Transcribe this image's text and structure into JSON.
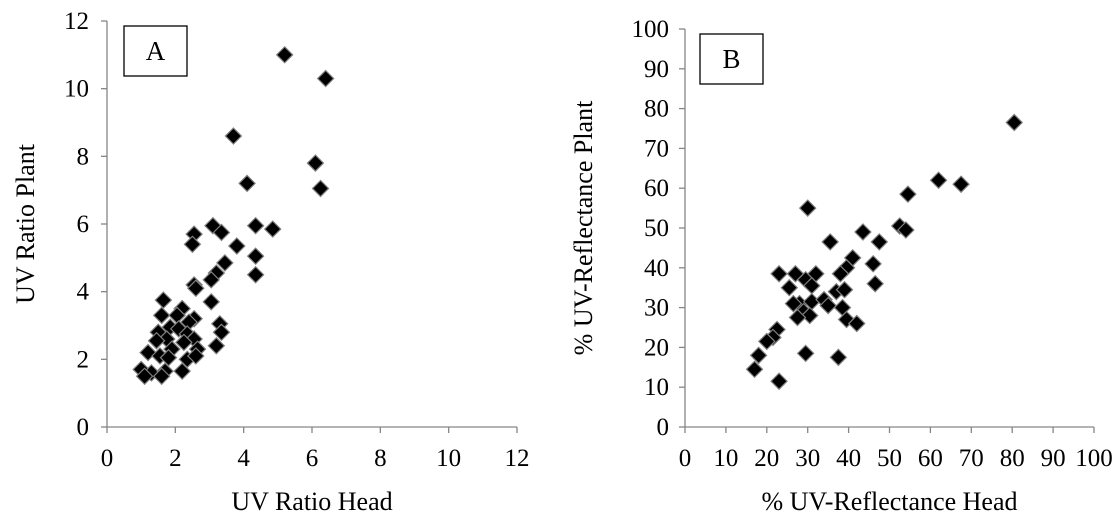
{
  "chart_data": [
    {
      "type": "scatter",
      "panel_label": "A",
      "xlabel": "UV Ratio Head",
      "ylabel": "UV Ratio Plant",
      "xlim": [
        0,
        12
      ],
      "ylim": [
        0,
        12
      ],
      "xticks": [
        "0",
        "2",
        "4",
        "6",
        "8",
        "10",
        "12"
      ],
      "yticks": [
        "0",
        "2",
        "4",
        "6",
        "8",
        "10",
        "12"
      ],
      "grid": false,
      "marker": "diamond",
      "points": [
        [
          5.2,
          11.0
        ],
        [
          6.4,
          10.3
        ],
        [
          3.7,
          8.6
        ],
        [
          6.1,
          7.8
        ],
        [
          6.25,
          7.05
        ],
        [
          4.1,
          7.2
        ],
        [
          3.1,
          5.95
        ],
        [
          4.35,
          5.95
        ],
        [
          4.85,
          5.85
        ],
        [
          3.35,
          5.75
        ],
        [
          2.55,
          5.7
        ],
        [
          2.5,
          5.4
        ],
        [
          3.8,
          5.35
        ],
        [
          4.35,
          5.05
        ],
        [
          3.45,
          4.85
        ],
        [
          3.2,
          4.55
        ],
        [
          4.35,
          4.5
        ],
        [
          3.05,
          4.35
        ],
        [
          2.55,
          4.2
        ],
        [
          2.6,
          4.1
        ],
        [
          1.65,
          3.75
        ],
        [
          3.05,
          3.7
        ],
        [
          2.2,
          3.5
        ],
        [
          1.6,
          3.3
        ],
        [
          2.05,
          3.3
        ],
        [
          2.55,
          3.2
        ],
        [
          2.4,
          3.1
        ],
        [
          3.3,
          3.05
        ],
        [
          1.85,
          2.95
        ],
        [
          2.1,
          2.9
        ],
        [
          1.5,
          2.8
        ],
        [
          2.35,
          2.75
        ],
        [
          3.35,
          2.8
        ],
        [
          1.75,
          2.6
        ],
        [
          2.55,
          2.6
        ],
        [
          1.45,
          2.55
        ],
        [
          2.25,
          2.5
        ],
        [
          1.2,
          2.2
        ],
        [
          1.9,
          2.3
        ],
        [
          2.65,
          2.3
        ],
        [
          1.55,
          2.1
        ],
        [
          1.8,
          2.05
        ],
        [
          2.35,
          2.0
        ],
        [
          2.6,
          2.1
        ],
        [
          1.0,
          1.7
        ],
        [
          1.3,
          1.6
        ],
        [
          1.7,
          1.65
        ],
        [
          2.2,
          1.65
        ],
        [
          1.1,
          1.5
        ],
        [
          1.6,
          1.5
        ],
        [
          3.2,
          2.4
        ]
      ]
    },
    {
      "type": "scatter",
      "panel_label": "B",
      "xlabel": "% UV-Reflectance Head",
      "ylabel": "% UV-Reflectance Plant",
      "xlim": [
        0,
        100
      ],
      "ylim": [
        0,
        100
      ],
      "xticks": [
        "0",
        "10",
        "20",
        "30",
        "40",
        "50",
        "60",
        "70",
        "80",
        "90",
        "100"
      ],
      "yticks": [
        "0",
        "10",
        "20",
        "30",
        "40",
        "50",
        "60",
        "70",
        "80",
        "90",
        "100"
      ],
      "grid": false,
      "marker": "diamond",
      "points": [
        [
          80.5,
          76.5
        ],
        [
          62,
          62
        ],
        [
          67.5,
          61
        ],
        [
          54.5,
          58.5
        ],
        [
          30,
          55
        ],
        [
          52.5,
          50.5
        ],
        [
          54,
          49.5
        ],
        [
          43.5,
          49
        ],
        [
          47.5,
          46.5
        ],
        [
          35.5,
          46.5
        ],
        [
          41,
          42.5
        ],
        [
          39.5,
          40
        ],
        [
          46,
          41
        ],
        [
          23,
          38.5
        ],
        [
          27,
          38.5
        ],
        [
          32,
          38.5
        ],
        [
          38,
          38.5
        ],
        [
          29.5,
          37
        ],
        [
          25.5,
          35
        ],
        [
          31,
          35.5
        ],
        [
          46.5,
          36
        ],
        [
          37,
          34
        ],
        [
          39,
          34.5
        ],
        [
          28,
          31
        ],
        [
          31,
          31.5
        ],
        [
          34,
          32
        ],
        [
          26.5,
          31
        ],
        [
          35,
          30.5
        ],
        [
          29,
          29
        ],
        [
          38.5,
          30
        ],
        [
          30.5,
          28
        ],
        [
          27.5,
          27.5
        ],
        [
          39.5,
          27
        ],
        [
          42,
          26
        ],
        [
          22.5,
          24.5
        ],
        [
          21.5,
          22.5
        ],
        [
          20,
          21.5
        ],
        [
          18,
          18
        ],
        [
          29.5,
          18.5
        ],
        [
          37.5,
          17.5
        ],
        [
          17,
          14.5
        ],
        [
          23,
          11.5
        ]
      ]
    }
  ]
}
